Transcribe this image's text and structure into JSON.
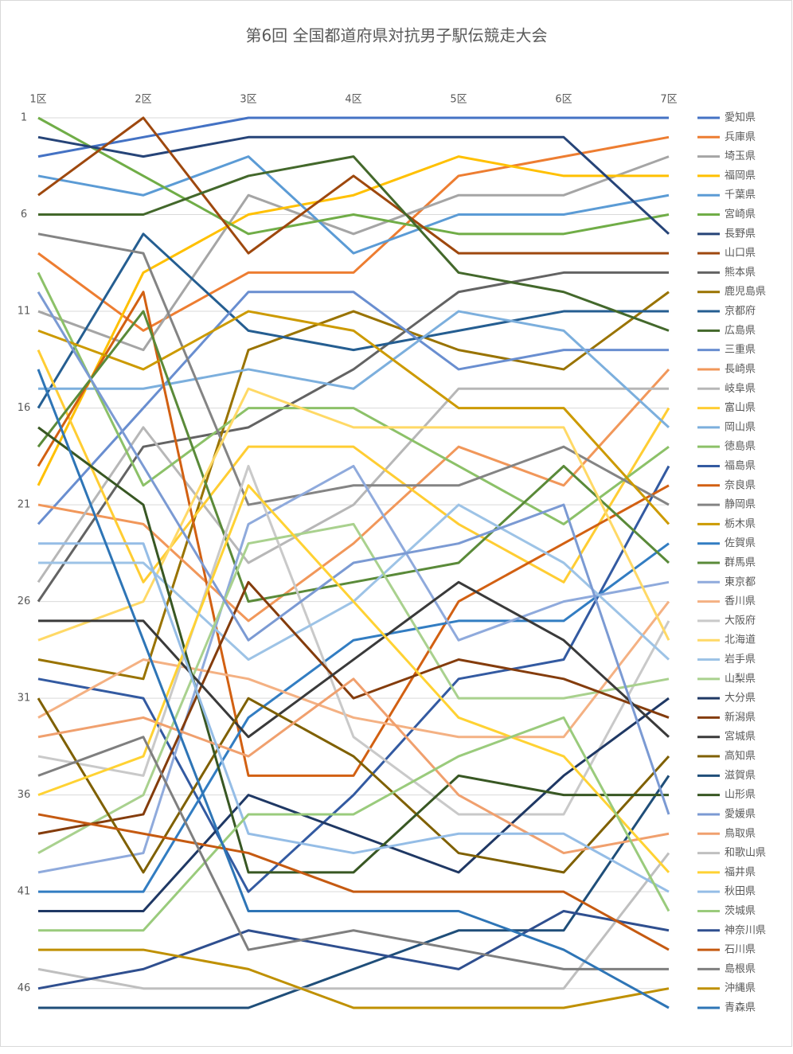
{
  "chart_data": {
    "type": "line",
    "title": "第6回 全国都道府県対抗男子駅伝競走大会",
    "categories": [
      "1区",
      "2区",
      "3区",
      "4区",
      "5区",
      "6区",
      "7区"
    ],
    "ylim": [
      1,
      47
    ],
    "y_reversed": true,
    "yticks": [
      1,
      6,
      11,
      16,
      21,
      26,
      31,
      36,
      41,
      46
    ],
    "grid": true,
    "legend": "right",
    "series": [
      {
        "name": "愛知県",
        "color": "#4472C4",
        "values": [
          3,
          2,
          1,
          1,
          1,
          1,
          1
        ]
      },
      {
        "name": "兵庫県",
        "color": "#ED7D31",
        "values": [
          8,
          12,
          9,
          9,
          4,
          3,
          2
        ]
      },
      {
        "name": "埼玉県",
        "color": "#A5A5A5",
        "values": [
          11,
          13,
          5,
          7,
          5,
          5,
          3
        ]
      },
      {
        "name": "福岡県",
        "color": "#FFC000",
        "values": [
          20,
          9,
          6,
          5,
          3,
          4,
          4
        ]
      },
      {
        "name": "千葉県",
        "color": "#5B9BD5",
        "values": [
          4,
          5,
          3,
          8,
          6,
          6,
          5
        ]
      },
      {
        "name": "宮崎県",
        "color": "#70AD47",
        "values": [
          1,
          4,
          7,
          6,
          7,
          7,
          6
        ]
      },
      {
        "name": "長野県",
        "color": "#264478",
        "values": [
          2,
          3,
          2,
          2,
          2,
          2,
          7
        ]
      },
      {
        "name": "山口県",
        "color": "#9E480E",
        "values": [
          5,
          1,
          8,
          4,
          8,
          8,
          8
        ]
      },
      {
        "name": "熊本県",
        "color": "#636363",
        "values": [
          26,
          18,
          17,
          14,
          10,
          9,
          9
        ]
      },
      {
        "name": "鹿児島県",
        "color": "#997300",
        "values": [
          29,
          30,
          13,
          11,
          13,
          14,
          10
        ]
      },
      {
        "name": "京都府",
        "color": "#255E91",
        "values": [
          16,
          7,
          12,
          13,
          12,
          11,
          11
        ]
      },
      {
        "name": "広島県",
        "color": "#43682B",
        "values": [
          6,
          6,
          4,
          3,
          9,
          10,
          12
        ]
      },
      {
        "name": "三重県",
        "color": "#698ED0",
        "values": [
          22,
          16,
          10,
          10,
          14,
          13,
          13
        ]
      },
      {
        "name": "長崎県",
        "color": "#F1975A",
        "values": [
          21,
          22,
          27,
          23,
          18,
          20,
          14
        ]
      },
      {
        "name": "岐阜県",
        "color": "#B7B7B7",
        "values": [
          25,
          17,
          24,
          21,
          15,
          15,
          15
        ]
      },
      {
        "name": "富山県",
        "color": "#FFCD33",
        "values": [
          13,
          25,
          18,
          18,
          22,
          25,
          16
        ]
      },
      {
        "name": "岡山県",
        "color": "#7CAFDD",
        "values": [
          15,
          15,
          14,
          15,
          11,
          12,
          17
        ]
      },
      {
        "name": "徳島県",
        "color": "#8CC168",
        "values": [
          9,
          20,
          16,
          16,
          19,
          22,
          18
        ]
      },
      {
        "name": "福島県",
        "color": "#335AA1",
        "values": [
          30,
          31,
          41,
          36,
          30,
          29,
          19
        ]
      },
      {
        "name": "奈良県",
        "color": "#D26012",
        "values": [
          19,
          10,
          35,
          35,
          26,
          23,
          20
        ]
      },
      {
        "name": "静岡県",
        "color": "#848484",
        "values": [
          7,
          8,
          21,
          20,
          20,
          18,
          21
        ]
      },
      {
        "name": "栃木県",
        "color": "#CC9A00",
        "values": [
          12,
          14,
          11,
          12,
          16,
          16,
          22
        ]
      },
      {
        "name": "佐賀県",
        "color": "#327DC2",
        "values": [
          41,
          41,
          32,
          28,
          27,
          27,
          23
        ]
      },
      {
        "name": "群馬県",
        "color": "#5A8A39",
        "values": [
          18,
          11,
          26,
          25,
          24,
          19,
          24
        ]
      },
      {
        "name": "東京都",
        "color": "#8FAADC",
        "values": [
          40,
          39,
          22,
          19,
          28,
          26,
          25
        ]
      },
      {
        "name": "香川県",
        "color": "#F4B183",
        "values": [
          32,
          29,
          30,
          32,
          33,
          33,
          26
        ]
      },
      {
        "name": "大阪府",
        "color": "#C9C9C9",
        "values": [
          34,
          35,
          19,
          33,
          37,
          37,
          27
        ]
      },
      {
        "name": "北海道",
        "color": "#FFD966",
        "values": [
          28,
          26,
          15,
          17,
          17,
          17,
          28
        ]
      },
      {
        "name": "岩手県",
        "color": "#9DC3E6",
        "values": [
          24,
          24,
          29,
          26,
          21,
          24,
          29
        ]
      },
      {
        "name": "山梨県",
        "color": "#A9D18E",
        "values": [
          39,
          36,
          23,
          22,
          31,
          31,
          30
        ]
      },
      {
        "name": "大分県",
        "color": "#1F3864",
        "values": [
          42,
          42,
          36,
          38,
          40,
          35,
          31
        ]
      },
      {
        "name": "新潟県",
        "color": "#843C0C",
        "values": [
          38,
          37,
          25,
          31,
          29,
          30,
          32
        ]
      },
      {
        "name": "宮城県",
        "color": "#3A3A3A",
        "values": [
          27,
          27,
          33,
          29,
          25,
          28,
          33
        ]
      },
      {
        "name": "高知県",
        "color": "#7F6000",
        "values": [
          31,
          40,
          31,
          34,
          39,
          40,
          34
        ]
      },
      {
        "name": "滋賀県",
        "color": "#1F4E79",
        "values": [
          47,
          47,
          47,
          45,
          43,
          43,
          35
        ]
      },
      {
        "name": "山形県",
        "color": "#385723",
        "values": [
          17,
          21,
          40,
          40,
          35,
          36,
          36
        ]
      },
      {
        "name": "愛媛県",
        "color": "#7B9AD3",
        "values": [
          10,
          19,
          28,
          24,
          23,
          21,
          37
        ]
      },
      {
        "name": "鳥取県",
        "color": "#F0A06E",
        "values": [
          33,
          32,
          34,
          30,
          36,
          39,
          38
        ]
      },
      {
        "name": "和歌山県",
        "color": "#BFBFBF",
        "values": [
          45,
          46,
          46,
          46,
          46,
          46,
          39
        ]
      },
      {
        "name": "福井県",
        "color": "#FFD233",
        "values": [
          36,
          34,
          20,
          26,
          32,
          34,
          40
        ]
      },
      {
        "name": "秋田県",
        "color": "#95BDE6",
        "values": [
          23,
          23,
          38,
          39,
          38,
          38,
          41
        ]
      },
      {
        "name": "茨城県",
        "color": "#9ACB7C",
        "values": [
          43,
          43,
          37,
          37,
          34,
          32,
          42
        ]
      },
      {
        "name": "神奈川県",
        "color": "#2F4F8F",
        "values": [
          46,
          45,
          43,
          44,
          45,
          42,
          43
        ]
      },
      {
        "name": "石川県",
        "color": "#C55A11",
        "values": [
          37,
          38,
          39,
          41,
          41,
          41,
          44
        ]
      },
      {
        "name": "島根県",
        "color": "#7F7F7F",
        "values": [
          35,
          33,
          44,
          43,
          44,
          45,
          45
        ]
      },
      {
        "name": "沖縄県",
        "color": "#BF9000",
        "values": [
          44,
          44,
          45,
          47,
          47,
          47,
          46
        ]
      },
      {
        "name": "青森県",
        "color": "#2E75B6",
        "values": [
          14,
          28,
          42,
          42,
          42,
          44,
          47
        ]
      }
    ]
  }
}
